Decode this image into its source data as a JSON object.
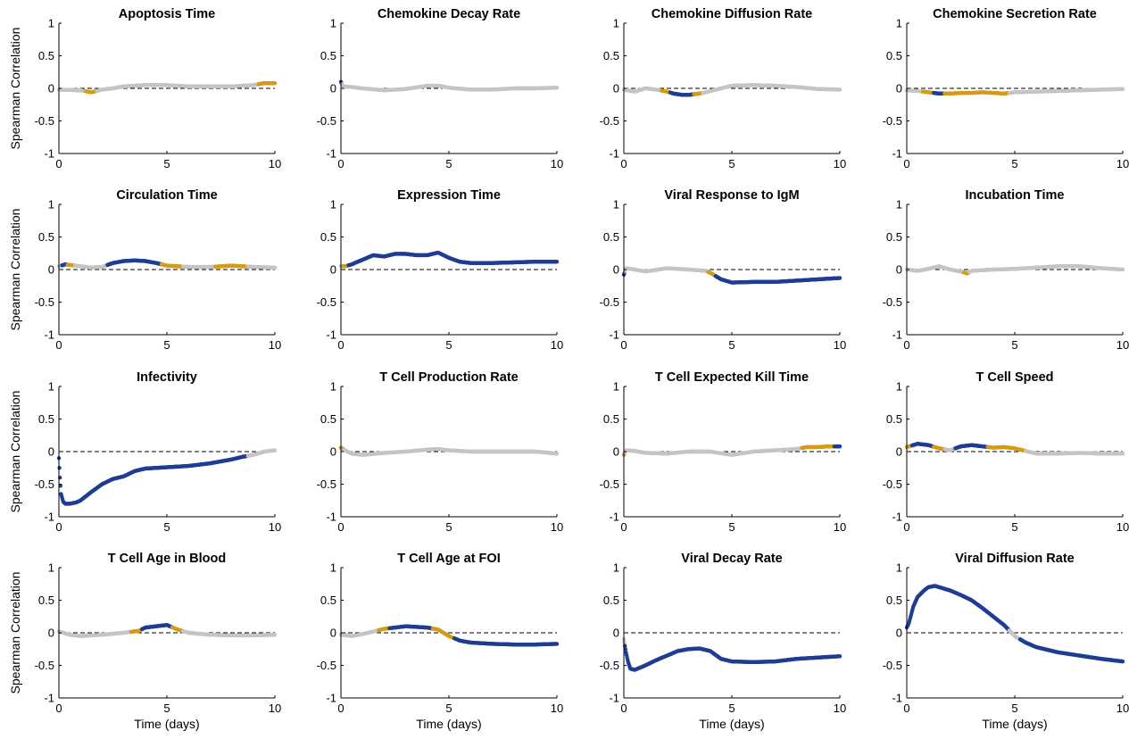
{
  "colors": {
    "significant_strong": "#1f3d94",
    "significant_weak": "#d69a16",
    "not_significant": "#c4c4c4",
    "axis": "#000000",
    "zero_line": "#000000"
  },
  "chart_data": [
    {
      "type": "scatter",
      "title": "Apoptosis Time",
      "xlabel": "",
      "ylabel": "Spearman Correlation",
      "xlim": [
        0,
        10
      ],
      "ylim": [
        -1,
        1
      ],
      "xticks": [
        "0",
        "5",
        "10"
      ],
      "yticks": [
        "1",
        "0.5",
        "0",
        "-0.5",
        "-1"
      ],
      "x": [
        0,
        1,
        1.5,
        2,
        2.5,
        3,
        4,
        5,
        6,
        7,
        8,
        9,
        9.5,
        10
      ],
      "y": [
        -0.02,
        -0.03,
        -0.06,
        -0.02,
        0,
        0.03,
        0.05,
        0.05,
        0.03,
        0.03,
        0.03,
        0.05,
        0.08,
        0.08
      ],
      "sig": [
        0,
        0,
        2,
        0,
        0,
        0,
        0,
        0,
        0,
        0,
        0,
        0,
        2,
        2
      ]
    },
    {
      "type": "scatter",
      "title": "Chemokine Decay Rate",
      "xlabel": "",
      "ylabel": "",
      "xlim": [
        0,
        10
      ],
      "ylim": [
        -1,
        1
      ],
      "xticks": [
        "0",
        "5",
        "10"
      ],
      "yticks": [
        "1",
        "0.5",
        "0",
        "-0.5",
        "-1"
      ],
      "x": [
        0,
        0.1,
        0.5,
        1,
        2,
        3,
        4,
        4.5,
        5,
        6,
        7,
        8,
        9,
        10
      ],
      "y": [
        0.1,
        0.03,
        0.02,
        0,
        -0.03,
        -0.01,
        0.04,
        0.04,
        0.01,
        -0.02,
        -0.02,
        0,
        0,
        0.01
      ],
      "sig": [
        1,
        0,
        0,
        0,
        0,
        0,
        0,
        0,
        0,
        0,
        0,
        0,
        0,
        0
      ]
    },
    {
      "type": "scatter",
      "title": "Chemokine Diffusion Rate",
      "xlabel": "",
      "ylabel": "",
      "xlim": [
        0,
        10
      ],
      "ylim": [
        -1,
        1
      ],
      "xticks": [
        "0",
        "5",
        "10"
      ],
      "yticks": [
        "1",
        "0.5",
        "0",
        "-0.5",
        "-1"
      ],
      "x": [
        0,
        0.5,
        1,
        1.5,
        2,
        2.3,
        2.7,
        3,
        3.5,
        3.8,
        4.5,
        5,
        6,
        7,
        8,
        9,
        10
      ],
      "y": [
        -0.02,
        -0.05,
        0,
        -0.02,
        -0.05,
        -0.08,
        -0.1,
        -0.1,
        -0.08,
        -0.06,
        0,
        0.04,
        0.05,
        0.04,
        0.02,
        -0.01,
        -0.02
      ],
      "sig": [
        0,
        0,
        0,
        0,
        2,
        1,
        1,
        1,
        2,
        0,
        0,
        0,
        0,
        0,
        0,
        0,
        0
      ]
    },
    {
      "type": "scatter",
      "title": "Chemokine Secretion Rate",
      "xlabel": "",
      "ylabel": "",
      "xlim": [
        0,
        10
      ],
      "ylim": [
        -1,
        1
      ],
      "xticks": [
        "0",
        "5",
        "10"
      ],
      "yticks": [
        "1",
        "0.5",
        "0",
        "-0.5",
        "-1"
      ],
      "x": [
        0,
        0.5,
        1,
        1.5,
        2,
        2.5,
        3,
        3.5,
        4,
        4.5,
        5,
        6,
        7,
        8,
        9,
        10
      ],
      "y": [
        -0.03,
        -0.04,
        -0.06,
        -0.08,
        -0.08,
        -0.07,
        -0.07,
        -0.06,
        -0.07,
        -0.08,
        -0.06,
        -0.05,
        -0.04,
        -0.03,
        -0.02,
        -0.01
      ],
      "sig": [
        0,
        0,
        2,
        1,
        2,
        2,
        2,
        2,
        2,
        2,
        0,
        0,
        0,
        0,
        0,
        0
      ]
    },
    {
      "type": "scatter",
      "title": "Circulation Time",
      "xlabel": "",
      "ylabel": "Spearman Correlation",
      "xlim": [
        0,
        10
      ],
      "ylim": [
        -1,
        1
      ],
      "xticks": [
        "0",
        "5",
        "10"
      ],
      "yticks": [
        "1",
        "0.5",
        "0",
        "-0.5",
        "-1"
      ],
      "x": [
        0,
        0.3,
        0.5,
        1,
        1.5,
        2,
        2.5,
        3,
        3.5,
        4,
        4.5,
        5,
        5.5,
        6,
        7,
        7.5,
        8,
        8.5,
        9,
        10
      ],
      "y": [
        0.05,
        0.08,
        0.07,
        0.05,
        0.03,
        0.04,
        0.1,
        0.13,
        0.14,
        0.13,
        0.1,
        0.06,
        0.05,
        0.04,
        0.04,
        0.05,
        0.06,
        0.05,
        0.04,
        0.03
      ],
      "sig": [
        0,
        1,
        2,
        0,
        0,
        0,
        1,
        1,
        1,
        1,
        1,
        2,
        2,
        0,
        0,
        2,
        2,
        2,
        0,
        0
      ]
    },
    {
      "type": "scatter",
      "title": "Expression Time",
      "xlabel": "",
      "ylabel": "",
      "xlim": [
        0,
        10
      ],
      "ylim": [
        -1,
        1
      ],
      "xticks": [
        "0",
        "5",
        "10"
      ],
      "yticks": [
        "1",
        "0.5",
        "0",
        "-0.5",
        "-1"
      ],
      "x": [
        0,
        0.2,
        0.5,
        1,
        1.5,
        2,
        2.5,
        3,
        3.5,
        4,
        4.5,
        5,
        5.5,
        6,
        7,
        8,
        9,
        10
      ],
      "y": [
        0.05,
        0.05,
        0.08,
        0.15,
        0.22,
        0.2,
        0.24,
        0.24,
        0.22,
        0.22,
        0.26,
        0.18,
        0.12,
        0.1,
        0.1,
        0.11,
        0.12,
        0.12
      ],
      "sig": [
        0,
        2,
        1,
        1,
        1,
        1,
        1,
        1,
        1,
        1,
        1,
        1,
        1,
        1,
        1,
        1,
        1,
        1
      ]
    },
    {
      "type": "scatter",
      "title": "Viral Response to IgM",
      "xlabel": "",
      "ylabel": "",
      "xlim": [
        0,
        10
      ],
      "ylim": [
        -1,
        1
      ],
      "xticks": [
        "0",
        "5",
        "10"
      ],
      "yticks": [
        "1",
        "0.5",
        "0",
        "-0.5",
        "-1"
      ],
      "x": [
        0,
        0.1,
        0.5,
        1,
        2,
        3,
        3.8,
        4,
        4.5,
        5,
        6,
        7,
        8,
        9,
        10
      ],
      "y": [
        -0.08,
        0.02,
        0,
        -0.03,
        0.02,
        0,
        -0.02,
        -0.05,
        -0.15,
        -0.2,
        -0.19,
        -0.19,
        -0.17,
        -0.15,
        -0.13
      ],
      "sig": [
        1,
        0,
        0,
        0,
        0,
        0,
        0,
        2,
        1,
        1,
        1,
        1,
        1,
        1,
        1
      ]
    },
    {
      "type": "scatter",
      "title": "Incubation Time",
      "xlabel": "",
      "ylabel": "",
      "xlim": [
        0,
        10
      ],
      "ylim": [
        -1,
        1
      ],
      "xticks": [
        "0",
        "5",
        "10"
      ],
      "yticks": [
        "1",
        "0.5",
        "0",
        "-0.5",
        "-1"
      ],
      "x": [
        0,
        0.5,
        1,
        1.5,
        2,
        2.5,
        2.8,
        3,
        4,
        5,
        6,
        7,
        8,
        9,
        10
      ],
      "y": [
        0,
        -0.02,
        0.01,
        0.05,
        0,
        -0.03,
        -0.06,
        -0.02,
        0,
        0.01,
        0.03,
        0.05,
        0.05,
        0.02,
        0
      ],
      "sig": [
        0,
        0,
        0,
        0,
        0,
        0,
        2,
        0,
        0,
        0,
        0,
        0,
        0,
        0,
        0
      ]
    },
    {
      "type": "scatter",
      "title": "Infectivity",
      "xlabel": "",
      "ylabel": "Spearman Correlation",
      "xlim": [
        0,
        10
      ],
      "ylim": [
        -1,
        1
      ],
      "xticks": [
        "0",
        "5",
        "10"
      ],
      "yticks": [
        "1",
        "0.5",
        "0",
        "-0.5",
        "-1"
      ],
      "x": [
        0,
        0.05,
        0.1,
        0.2,
        0.3,
        0.5,
        0.8,
        1,
        1.5,
        2,
        2.5,
        3,
        3.5,
        4,
        5,
        6,
        7,
        8,
        8.5,
        9,
        9.5,
        10
      ],
      "y": [
        -0.1,
        -0.4,
        -0.65,
        -0.77,
        -0.8,
        -0.8,
        -0.78,
        -0.75,
        -0.62,
        -0.5,
        -0.42,
        -0.38,
        -0.3,
        -0.26,
        -0.24,
        -0.22,
        -0.18,
        -0.12,
        -0.08,
        -0.05,
        0,
        0.02
      ],
      "sig": [
        1,
        1,
        1,
        1,
        1,
        1,
        1,
        1,
        1,
        1,
        1,
        1,
        1,
        1,
        1,
        1,
        1,
        1,
        1,
        0,
        0,
        0
      ]
    },
    {
      "type": "scatter",
      "title": "T Cell Production Rate",
      "xlabel": "",
      "ylabel": "",
      "xlim": [
        0,
        10
      ],
      "ylim": [
        -1,
        1
      ],
      "xticks": [
        "0",
        "5",
        "10"
      ],
      "yticks": [
        "1",
        "0.5",
        "0",
        "-0.5",
        "-1"
      ],
      "x": [
        0,
        0.3,
        0.5,
        1,
        2,
        3,
        4,
        4.5,
        5,
        6,
        7,
        8,
        9,
        10
      ],
      "y": [
        0.06,
        0,
        -0.03,
        -0.05,
        -0.02,
        0,
        0.03,
        0.04,
        0.02,
        0,
        0,
        0,
        0,
        -0.03
      ],
      "sig": [
        2,
        0,
        0,
        0,
        0,
        0,
        0,
        0,
        0,
        0,
        0,
        0,
        0,
        0
      ]
    },
    {
      "type": "scatter",
      "title": "T Cell Expected Kill Time",
      "xlabel": "",
      "ylabel": "",
      "xlim": [
        0,
        10
      ],
      "ylim": [
        -1,
        1
      ],
      "xticks": [
        "0",
        "5",
        "10"
      ],
      "yticks": [
        "1",
        "0.5",
        "0",
        "-0.5",
        "-1"
      ],
      "x": [
        0,
        0.1,
        0.5,
        1,
        2,
        3,
        4,
        5,
        6,
        7,
        8,
        8.5,
        9,
        9.5,
        10
      ],
      "y": [
        -0.05,
        0.02,
        0.01,
        -0.02,
        -0.03,
        0,
        0,
        -0.05,
        0,
        0.02,
        0.04,
        0.07,
        0.07,
        0.08,
        0.08
      ],
      "sig": [
        2,
        0,
        0,
        0,
        0,
        0,
        0,
        0,
        0,
        0,
        0,
        2,
        2,
        2,
        1
      ]
    },
    {
      "type": "scatter",
      "title": "T Cell Speed",
      "xlabel": "",
      "ylabel": "",
      "xlim": [
        0,
        10
      ],
      "ylim": [
        -1,
        1
      ],
      "xticks": [
        "0",
        "5",
        "10"
      ],
      "yticks": [
        "1",
        "0.5",
        "0",
        "-0.5",
        "-1"
      ],
      "x": [
        0,
        0.5,
        1,
        1.5,
        2,
        2.5,
        3,
        3.5,
        4,
        4.5,
        5,
        6,
        7,
        8,
        9,
        10
      ],
      "y": [
        0.07,
        0.12,
        0.1,
        0.05,
        0.02,
        0.08,
        0.1,
        0.08,
        0.06,
        0.07,
        0.05,
        -0.03,
        -0.03,
        -0.02,
        -0.03,
        -0.03
      ],
      "sig": [
        2,
        1,
        1,
        2,
        0,
        1,
        1,
        1,
        2,
        2,
        2,
        0,
        0,
        0,
        0,
        0
      ]
    },
    {
      "type": "scatter",
      "title": "T Cell Age in Blood",
      "xlabel": "Time (days)",
      "ylabel": "Spearman Correlation",
      "xlim": [
        0,
        10
      ],
      "ylim": [
        -1,
        1
      ],
      "xticks": [
        "0",
        "5",
        "10"
      ],
      "yticks": [
        "1",
        "0.5",
        "0",
        "-0.5",
        "-1"
      ],
      "x": [
        0,
        0.5,
        1,
        2,
        3,
        3.7,
        4,
        4.5,
        5,
        5.5,
        6,
        7,
        8,
        9,
        10
      ],
      "y": [
        0.02,
        -0.03,
        -0.05,
        -0.03,
        0,
        0.03,
        0.08,
        0.1,
        0.12,
        0.05,
        0,
        -0.03,
        -0.04,
        -0.04,
        -0.03
      ],
      "sig": [
        0,
        0,
        0,
        0,
        0,
        2,
        1,
        1,
        1,
        2,
        0,
        0,
        0,
        0,
        0
      ]
    },
    {
      "type": "scatter",
      "title": "T Cell Age at FOI",
      "xlabel": "Time (days)",
      "ylabel": "",
      "xlim": [
        0,
        10
      ],
      "ylim": [
        -1,
        1
      ],
      "xticks": [
        "0",
        "5",
        "10"
      ],
      "yticks": [
        "1",
        "0.5",
        "0",
        "-0.5",
        "-1"
      ],
      "x": [
        0,
        0.5,
        1,
        1.5,
        2,
        2.5,
        3,
        3.5,
        4,
        4.5,
        5,
        5.5,
        6,
        7,
        8,
        9,
        10
      ],
      "y": [
        -0.03,
        -0.05,
        -0.02,
        0.02,
        0.06,
        0.08,
        0.1,
        0.09,
        0.08,
        0.05,
        -0.05,
        -0.12,
        -0.15,
        -0.17,
        -0.18,
        -0.18,
        -0.17
      ],
      "sig": [
        0,
        0,
        0,
        0,
        2,
        1,
        1,
        1,
        1,
        2,
        2,
        1,
        1,
        1,
        1,
        1,
        1
      ]
    },
    {
      "type": "scatter",
      "title": "Viral Decay Rate",
      "xlabel": "Time (days)",
      "ylabel": "",
      "xlim": [
        0,
        10
      ],
      "ylim": [
        -1,
        1
      ],
      "xticks": [
        "0",
        "5",
        "10"
      ],
      "yticks": [
        "1",
        "0.5",
        "0",
        "-0.5",
        "-1"
      ],
      "x": [
        0,
        0.1,
        0.2,
        0.3,
        0.5,
        1,
        1.5,
        2,
        2.5,
        3,
        3.5,
        4,
        4.5,
        5,
        6,
        7,
        8,
        9,
        10
      ],
      "y": [
        -0.1,
        -0.3,
        -0.45,
        -0.55,
        -0.57,
        -0.5,
        -0.42,
        -0.35,
        -0.28,
        -0.25,
        -0.24,
        -0.28,
        -0.4,
        -0.44,
        -0.45,
        -0.44,
        -0.4,
        -0.38,
        -0.36
      ],
      "sig": [
        0,
        1,
        1,
        1,
        1,
        1,
        1,
        1,
        1,
        1,
        1,
        1,
        1,
        1,
        1,
        1,
        1,
        1,
        1
      ]
    },
    {
      "type": "scatter",
      "title": "Viral Diffusion Rate",
      "xlabel": "Time (days)",
      "ylabel": "",
      "xlim": [
        0,
        10
      ],
      "ylim": [
        -1,
        1
      ],
      "xticks": [
        "0",
        "5",
        "10"
      ],
      "yticks": [
        "1",
        "0.5",
        "0",
        "-0.5",
        "-1"
      ],
      "x": [
        0,
        0.1,
        0.3,
        0.5,
        0.8,
        1,
        1.3,
        1.5,
        2,
        2.5,
        3,
        3.5,
        4,
        4.5,
        5,
        5.5,
        6,
        7,
        8,
        9,
        10
      ],
      "y": [
        0.08,
        0.15,
        0.4,
        0.55,
        0.65,
        0.7,
        0.72,
        0.7,
        0.65,
        0.58,
        0.5,
        0.38,
        0.25,
        0.12,
        -0.05,
        -0.15,
        -0.22,
        -0.3,
        -0.35,
        -0.4,
        -0.44
      ],
      "sig": [
        1,
        1,
        1,
        1,
        1,
        1,
        1,
        1,
        1,
        1,
        1,
        1,
        1,
        1,
        0,
        1,
        1,
        1,
        1,
        1,
        1
      ]
    }
  ]
}
